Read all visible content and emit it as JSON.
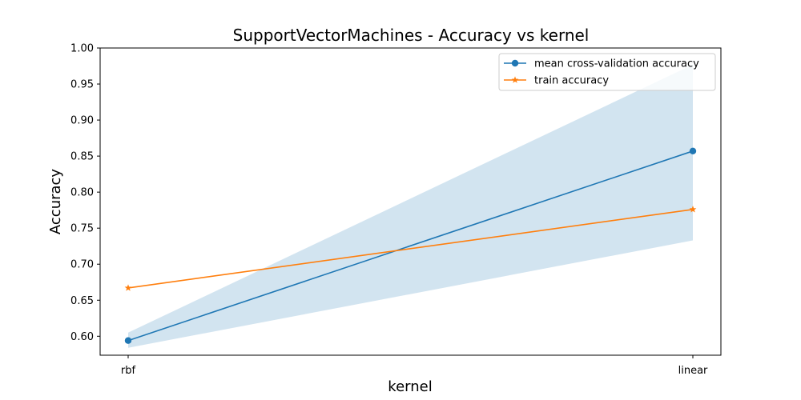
{
  "chart_data": {
    "type": "line",
    "title": "SupportVectorMachines - Accuracy vs kernel",
    "xlabel": "kernel",
    "ylabel": "Accuracy",
    "categories": [
      "rbf",
      "linear"
    ],
    "ylim": [
      0.5737,
      1.0
    ],
    "yticks": [
      "0.60",
      "0.65",
      "0.70",
      "0.75",
      "0.80",
      "0.85",
      "0.90",
      "0.95",
      "1.00"
    ],
    "grid": false,
    "legend_position": "top-right",
    "series": [
      {
        "name": "mean cross-validation accuracy",
        "values": [
          0.594,
          0.857
        ],
        "color": "#1f77b4",
        "marker": "circle",
        "band_lower": [
          0.584,
          0.733
        ],
        "band_upper": [
          0.605,
          0.977
        ],
        "band_color": "#1f77b4"
      },
      {
        "name": "train accuracy",
        "values": [
          0.667,
          0.776
        ],
        "color": "#ff7f0e",
        "marker": "star"
      }
    ]
  }
}
